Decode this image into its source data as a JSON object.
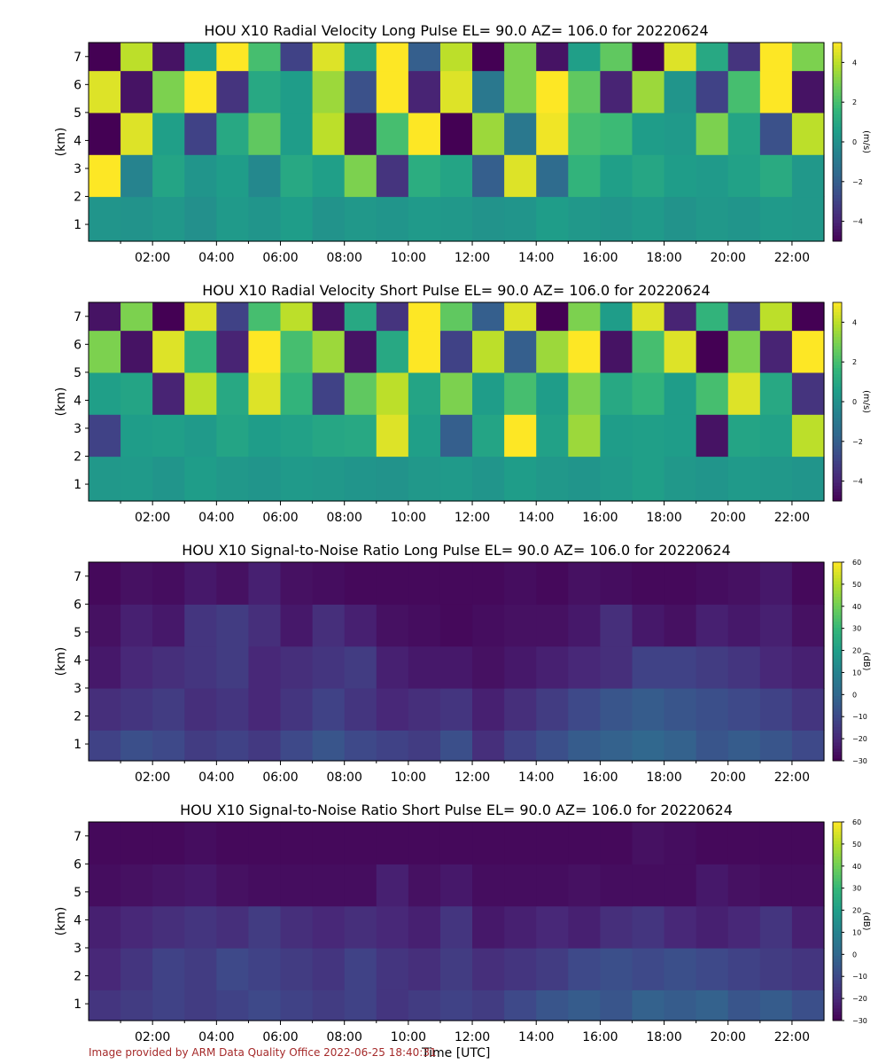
{
  "figure": {
    "x_axis_label": "Time [UTC]",
    "footer": "Image provided by ARM Data Quality Office 2022-06-25 18:40:31"
  },
  "colors": {
    "viridis": [
      "#440154",
      "#482878",
      "#3e4989",
      "#31688e",
      "#26828e",
      "#1f9e89",
      "#35b779",
      "#6ece58",
      "#b5de2b",
      "#fde725"
    ]
  },
  "chart_data": [
    {
      "type": "heatmap",
      "title": "HOU X10 Radial Velocity Long Pulse EL= 90.0 AZ= 106.0 for 20220624",
      "ylabel": "(km)",
      "colorbar_label": "(m/s)",
      "x_tick_labels": [
        "02:00",
        "04:00",
        "06:00",
        "08:00",
        "10:00",
        "12:00",
        "14:00",
        "16:00",
        "18:00",
        "20:00",
        "22:00"
      ],
      "y_ticks": [
        1,
        2,
        3,
        4,
        5,
        6,
        7
      ],
      "colorbar_ticks": [
        -4,
        -2,
        0,
        2,
        4
      ],
      "xlim_hours": [
        0,
        23
      ],
      "ylim": [
        0.4,
        7.5
      ],
      "clim": [
        -5,
        5
      ],
      "colormap": "viridis",
      "column_width_hours": 1,
      "rows": [
        {
          "z_range": [
            0.4,
            2.0
          ],
          "values": [
            0.2,
            0.1,
            0.3,
            0.0,
            0.4,
            0.2,
            0.5,
            0.1,
            0.3,
            0.2,
            0.4,
            0.3,
            0.1,
            0.2,
            0.5,
            0.3,
            0.2,
            0.4,
            0.1,
            0.3,
            0.2,
            0.4,
            0.3
          ]
        },
        {
          "z_range": [
            2.0,
            3.5
          ],
          "values": [
            5.0,
            -0.5,
            0.8,
            0.2,
            0.5,
            -0.3,
            1.0,
            0.6,
            3.0,
            -3.5,
            1.2,
            0.8,
            -2.0,
            4.5,
            -1.5,
            1.5,
            0.6,
            0.9,
            0.5,
            0.4,
            0.7,
            1.1,
            0.3
          ]
        },
        {
          "z_range": [
            3.5,
            5.0
          ],
          "values": [
            -5.0,
            4.5,
            0.6,
            -3.0,
            1.0,
            2.5,
            0.5,
            4.0,
            -4.5,
            2.0,
            5.0,
            -5.0,
            3.5,
            -1.0,
            4.8,
            2.0,
            1.8,
            0.5,
            0.4,
            3.0,
            0.8,
            -2.5,
            4.0
          ]
        },
        {
          "z_range": [
            5.0,
            6.5
          ],
          "values": [
            4.5,
            -4.5,
            3.0,
            5.0,
            -3.5,
            1.0,
            0.5,
            3.5,
            -2.5,
            5.0,
            -4.0,
            4.5,
            -1.0,
            3.0,
            5.0,
            2.5,
            -4.0,
            3.5,
            0.2,
            -3.0,
            2.0,
            5.0,
            -4.5
          ]
        },
        {
          "z_range": [
            6.5,
            7.5
          ],
          "values": [
            -5.0,
            4.0,
            -4.5,
            0.5,
            5.0,
            2.0,
            -3.0,
            4.5,
            0.8,
            5.0,
            -2.0,
            4.0,
            -5.0,
            3.0,
            -4.5,
            0.6,
            2.5,
            -5.0,
            4.5,
            1.0,
            -3.5,
            5.0,
            3.0
          ]
        }
      ]
    },
    {
      "type": "heatmap",
      "title": "HOU X10 Radial Velocity Short Pulse EL= 90.0 AZ= 106.0 for 20220624",
      "ylabel": "(km)",
      "colorbar_label": "(m/s)",
      "x_tick_labels": [
        "02:00",
        "04:00",
        "06:00",
        "08:00",
        "10:00",
        "12:00",
        "14:00",
        "16:00",
        "18:00",
        "20:00",
        "22:00"
      ],
      "y_ticks": [
        1,
        2,
        3,
        4,
        5,
        6,
        7
      ],
      "colorbar_ticks": [
        -4,
        -2,
        0,
        2,
        4
      ],
      "xlim_hours": [
        0,
        23
      ],
      "ylim": [
        0.4,
        7.5
      ],
      "clim": [
        -5,
        5
      ],
      "colormap": "viridis",
      "column_width_hours": 1,
      "rows": [
        {
          "z_range": [
            0.4,
            2.0
          ],
          "values": [
            0.3,
            0.4,
            0.2,
            0.5,
            0.3,
            0.2,
            0.4,
            0.3,
            0.2,
            0.1,
            0.3,
            0.4,
            0.2,
            0.5,
            0.3,
            0.2,
            0.4,
            0.6,
            0.3,
            0.2,
            0.4,
            0.3,
            0.2
          ]
        },
        {
          "z_range": [
            2.0,
            3.5
          ],
          "values": [
            -3.0,
            0.5,
            0.6,
            0.4,
            0.8,
            0.5,
            0.7,
            0.9,
            1.0,
            4.5,
            0.6,
            -2.0,
            0.8,
            5.0,
            0.7,
            3.5,
            0.5,
            0.6,
            0.5,
            -4.5,
            0.8,
            0.7,
            4.0
          ]
        },
        {
          "z_range": [
            3.5,
            5.0
          ],
          "values": [
            0.6,
            0.8,
            -4.0,
            4.0,
            1.0,
            4.5,
            1.5,
            -3.0,
            2.5,
            4.0,
            0.8,
            3.0,
            0.5,
            2.0,
            0.5,
            3.0,
            1.0,
            1.5,
            0.5,
            2.0,
            4.5,
            1.0,
            -3.5
          ]
        },
        {
          "z_range": [
            5.0,
            6.5
          ],
          "values": [
            3.0,
            -4.5,
            4.5,
            1.5,
            -4.0,
            5.0,
            2.0,
            3.5,
            -4.5,
            1.0,
            5.0,
            -3.0,
            4.0,
            -2.0,
            3.5,
            5.0,
            -4.5,
            2.0,
            4.5,
            -5.0,
            3.0,
            -4.0,
            5.0
          ]
        },
        {
          "z_range": [
            6.5,
            7.5
          ],
          "values": [
            -4.5,
            3.0,
            -5.0,
            4.5,
            -3.0,
            2.0,
            4.0,
            -4.5,
            1.0,
            -3.5,
            5.0,
            2.5,
            -2.0,
            4.5,
            -5.0,
            3.0,
            0.5,
            4.5,
            -4.0,
            1.5,
            -3.0,
            4.0,
            -5.0
          ]
        }
      ]
    },
    {
      "type": "heatmap",
      "title": "HOU X10 Signal-to-Noise Ratio Long Pulse EL= 90.0 AZ= 106.0 for 20220624",
      "ylabel": "(km)",
      "colorbar_label": "(dB)",
      "x_tick_labels": [
        "02:00",
        "04:00",
        "06:00",
        "08:00",
        "10:00",
        "12:00",
        "14:00",
        "16:00",
        "18:00",
        "20:00",
        "22:00"
      ],
      "y_ticks": [
        1,
        2,
        3,
        4,
        5,
        6,
        7
      ],
      "colorbar_ticks": [
        -30,
        -20,
        -10,
        0,
        10,
        20,
        30,
        40,
        50,
        60
      ],
      "xlim_hours": [
        0,
        23
      ],
      "ylim": [
        0.4,
        7.5
      ],
      "clim": [
        -30,
        60
      ],
      "colormap": "viridis",
      "column_width_hours": 1,
      "rows": [
        {
          "z_range": [
            0.4,
            1.5
          ],
          "values": [
            -12,
            -8,
            -10,
            -14,
            -12,
            -15,
            -10,
            -6,
            -10,
            -12,
            -14,
            -8,
            -18,
            -12,
            -8,
            -4,
            -2,
            0,
            -2,
            -6,
            -4,
            -6,
            -10
          ]
        },
        {
          "z_range": [
            1.5,
            3.0
          ],
          "values": [
            -18,
            -16,
            -14,
            -18,
            -16,
            -20,
            -16,
            -12,
            -16,
            -20,
            -18,
            -16,
            -22,
            -18,
            -14,
            -10,
            -6,
            -4,
            -6,
            -8,
            -10,
            -12,
            -16
          ]
        },
        {
          "z_range": [
            3.0,
            4.5
          ],
          "values": [
            -24,
            -20,
            -18,
            -16,
            -14,
            -20,
            -18,
            -16,
            -14,
            -22,
            -24,
            -24,
            -26,
            -24,
            -22,
            -20,
            -18,
            -12,
            -12,
            -14,
            -16,
            -20,
            -22
          ]
        },
        {
          "z_range": [
            4.5,
            6.0
          ],
          "values": [
            -26,
            -22,
            -24,
            -16,
            -14,
            -18,
            -24,
            -18,
            -22,
            -26,
            -27,
            -28,
            -27,
            -26,
            -26,
            -24,
            -18,
            -24,
            -26,
            -22,
            -24,
            -22,
            -26
          ]
        },
        {
          "z_range": [
            6.0,
            7.5
          ],
          "values": [
            -28,
            -26,
            -27,
            -24,
            -26,
            -22,
            -26,
            -27,
            -28,
            -28,
            -28,
            -28,
            -28,
            -27,
            -28,
            -26,
            -27,
            -28,
            -28,
            -27,
            -26,
            -24,
            -28
          ]
        }
      ]
    },
    {
      "type": "heatmap",
      "title": "HOU X10 Signal-to-Noise Ratio Short Pulse EL= 90.0 AZ= 106.0 for 20220624",
      "ylabel": "(km)",
      "colorbar_label": "(dB)",
      "x_tick_labels": [
        "02:00",
        "04:00",
        "06:00",
        "08:00",
        "10:00",
        "12:00",
        "14:00",
        "16:00",
        "18:00",
        "20:00",
        "22:00"
      ],
      "y_ticks": [
        1,
        2,
        3,
        4,
        5,
        6,
        7
      ],
      "colorbar_ticks": [
        -30,
        -20,
        -10,
        0,
        10,
        20,
        30,
        40,
        50,
        60
      ],
      "xlim_hours": [
        0,
        23
      ],
      "ylim": [
        0.4,
        7.5
      ],
      "clim": [
        -30,
        60
      ],
      "colormap": "viridis",
      "column_width_hours": 1,
      "rows": [
        {
          "z_range": [
            0.4,
            1.5
          ],
          "values": [
            -16,
            -14,
            -12,
            -14,
            -12,
            -10,
            -12,
            -14,
            -12,
            -16,
            -14,
            -12,
            -14,
            -10,
            -6,
            -4,
            -6,
            -2,
            -4,
            -2,
            -6,
            -4,
            -8
          ]
        },
        {
          "z_range": [
            1.5,
            3.0
          ],
          "values": [
            -20,
            -16,
            -12,
            -14,
            -10,
            -12,
            -14,
            -16,
            -12,
            -16,
            -18,
            -14,
            -18,
            -16,
            -14,
            -10,
            -8,
            -10,
            -8,
            -10,
            -12,
            -14,
            -16
          ]
        },
        {
          "z_range": [
            3.0,
            4.5
          ],
          "values": [
            -22,
            -20,
            -18,
            -16,
            -18,
            -14,
            -18,
            -20,
            -18,
            -20,
            -22,
            -16,
            -24,
            -22,
            -20,
            -22,
            -18,
            -16,
            -20,
            -22,
            -20,
            -16,
            -22
          ]
        },
        {
          "z_range": [
            4.5,
            6.0
          ],
          "values": [
            -27,
            -26,
            -25,
            -24,
            -26,
            -27,
            -27,
            -27,
            -27,
            -22,
            -26,
            -24,
            -27,
            -27,
            -27,
            -26,
            -27,
            -27,
            -27,
            -24,
            -26,
            -27,
            -27
          ]
        },
        {
          "z_range": [
            6.0,
            7.5
          ],
          "values": [
            -28,
            -28,
            -28,
            -27,
            -28,
            -28,
            -28,
            -28,
            -28,
            -28,
            -28,
            -28,
            -28,
            -28,
            -28,
            -28,
            -28,
            -26,
            -27,
            -28,
            -28,
            -28,
            -28
          ]
        }
      ]
    }
  ]
}
